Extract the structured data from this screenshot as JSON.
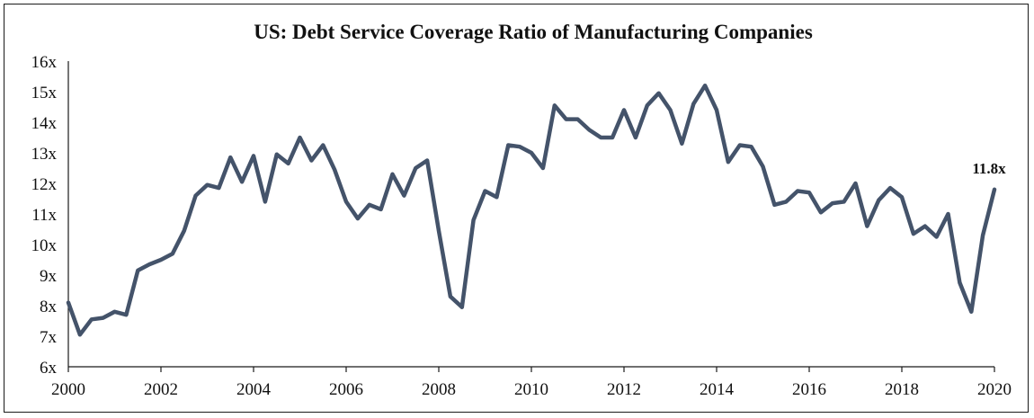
{
  "chart_data": {
    "type": "line",
    "title": "US: Debt Service Coverage Ratio of Manufacturing Companies",
    "xlabel": "",
    "ylabel": "",
    "x_ticks": [
      "2000",
      "2002",
      "2004",
      "2006",
      "2008",
      "2010",
      "2012",
      "2014",
      "2016",
      "2018",
      "2020"
    ],
    "y_ticks": [
      "6x",
      "7x",
      "8x",
      "9x",
      "10x",
      "11x",
      "12x",
      "13x",
      "14x",
      "15x",
      "16x"
    ],
    "xlim": [
      2000,
      2020
    ],
    "ylim": [
      6,
      16
    ],
    "grid": false,
    "legend": "none",
    "line_color": "#44536a",
    "series": [
      {
        "x": [
          2000.0,
          2000.25,
          2000.5,
          2000.75,
          2001.0,
          2001.25,
          2001.5,
          2001.75,
          2002.0,
          2002.25,
          2002.5,
          2002.75,
          2003.0,
          2003.25,
          2003.5,
          2003.75,
          2004.0,
          2004.25,
          2004.5,
          2004.75,
          2005.0,
          2005.25,
          2005.5,
          2005.75,
          2006.0,
          2006.25,
          2006.5,
          2006.75,
          2007.0,
          2007.25,
          2007.5,
          2007.75,
          2008.0,
          2008.25,
          2008.5,
          2008.75,
          2009.0,
          2009.25,
          2009.5,
          2009.75,
          2010.0,
          2010.25,
          2010.5,
          2010.75,
          2011.0,
          2011.25,
          2011.5,
          2011.75,
          2012.0,
          2012.25,
          2012.5,
          2012.75,
          2013.0,
          2013.25,
          2013.5,
          2013.75,
          2014.0,
          2014.25,
          2014.5,
          2014.75,
          2015.0,
          2015.25,
          2015.5,
          2015.75,
          2016.0,
          2016.25,
          2016.5,
          2016.75,
          2017.0,
          2017.25,
          2017.5,
          2017.75,
          2018.0,
          2018.25,
          2018.5,
          2018.75,
          2019.0,
          2019.25,
          2019.5,
          2019.75,
          2020.0
        ],
        "values": [
          8.1,
          7.05,
          7.55,
          7.6,
          7.8,
          7.7,
          9.15,
          9.35,
          9.5,
          9.7,
          10.45,
          11.6,
          11.95,
          11.85,
          12.85,
          12.05,
          12.9,
          11.4,
          12.95,
          12.65,
          13.5,
          12.75,
          13.25,
          12.45,
          11.4,
          10.85,
          11.3,
          11.15,
          12.3,
          11.6,
          12.5,
          12.75,
          10.45,
          8.3,
          7.95,
          10.8,
          11.75,
          11.55,
          13.25,
          13.2,
          13.0,
          12.5,
          14.55,
          14.1,
          14.1,
          13.75,
          13.5,
          13.5,
          14.4,
          13.5,
          14.55,
          14.95,
          14.4,
          13.3,
          14.6,
          15.2,
          14.4,
          12.7,
          13.25,
          13.2,
          12.55,
          11.3,
          11.4,
          11.75,
          11.7,
          11.05,
          11.35,
          11.4,
          12.0,
          10.6,
          11.45,
          11.85,
          11.55,
          10.35,
          10.6,
          10.25,
          11.0,
          8.75,
          7.8,
          10.3,
          11.8
        ]
      }
    ],
    "annotations": [
      {
        "x": 2020.0,
        "y": 11.8,
        "text": "11.8x"
      }
    ]
  }
}
